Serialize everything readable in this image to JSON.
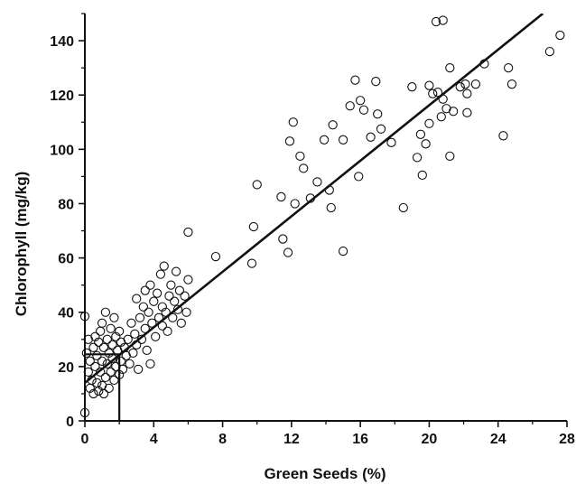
{
  "chart_data": {
    "type": "scatter",
    "title": "",
    "xlabel": "Green Seeds (%)",
    "ylabel": "Chlorophyll (mg/kg)",
    "xlim": [
      0,
      28
    ],
    "ylim": [
      0,
      150
    ],
    "xticks": [
      0,
      4,
      8,
      12,
      16,
      20,
      24,
      28
    ],
    "yticks": [
      0,
      20,
      40,
      60,
      80,
      100,
      120,
      140
    ],
    "grid": false,
    "legend": "none",
    "marker": "open-circle",
    "color": "#111111",
    "series": [
      {
        "points": [
          [
            0.0,
            3
          ],
          [
            0.0,
            38.5
          ],
          [
            0.1,
            25
          ],
          [
            0.2,
            18
          ],
          [
            0.2,
            30
          ],
          [
            0.3,
            12
          ],
          [
            0.3,
            22
          ],
          [
            0.4,
            15
          ],
          [
            0.5,
            10
          ],
          [
            0.5,
            27
          ],
          [
            0.6,
            20
          ],
          [
            0.6,
            31
          ],
          [
            0.7,
            14
          ],
          [
            0.7,
            24
          ],
          [
            0.8,
            11
          ],
          [
            0.8,
            29
          ],
          [
            0.9,
            18
          ],
          [
            0.9,
            33
          ],
          [
            1.0,
            13
          ],
          [
            1.0,
            22
          ],
          [
            1.0,
            36
          ],
          [
            1.1,
            10
          ],
          [
            1.1,
            27
          ],
          [
            1.2,
            16
          ],
          [
            1.2,
            40
          ],
          [
            1.3,
            21
          ],
          [
            1.3,
            30
          ],
          [
            1.4,
            12
          ],
          [
            1.4,
            25
          ],
          [
            1.5,
            18
          ],
          [
            1.5,
            34
          ],
          [
            1.6,
            23
          ],
          [
            1.6,
            28
          ],
          [
            1.7,
            15
          ],
          [
            1.7,
            38
          ],
          [
            1.8,
            20
          ],
          [
            1.8,
            31
          ],
          [
            1.9,
            26
          ],
          [
            2.0,
            17
          ],
          [
            2.0,
            33
          ],
          [
            2.1,
            22
          ],
          [
            2.1,
            29
          ],
          [
            2.2,
            19
          ],
          [
            2.3,
            27
          ],
          [
            2.4,
            24
          ],
          [
            2.5,
            30
          ],
          [
            2.6,
            21
          ],
          [
            2.7,
            36
          ],
          [
            2.8,
            25
          ],
          [
            2.9,
            32
          ],
          [
            3.0,
            28
          ],
          [
            3.0,
            45
          ],
          [
            3.1,
            19
          ],
          [
            3.2,
            38
          ],
          [
            3.3,
            30
          ],
          [
            3.4,
            42
          ],
          [
            3.5,
            34
          ],
          [
            3.5,
            48
          ],
          [
            3.6,
            26
          ],
          [
            3.7,
            40
          ],
          [
            3.8,
            21
          ],
          [
            3.8,
            50
          ],
          [
            3.9,
            36
          ],
          [
            4.0,
            44
          ],
          [
            4.1,
            31
          ],
          [
            4.2,
            47
          ],
          [
            4.3,
            38
          ],
          [
            4.4,
            54
          ],
          [
            4.5,
            35
          ],
          [
            4.5,
            42
          ],
          [
            4.6,
            57
          ],
          [
            4.7,
            40
          ],
          [
            4.8,
            33
          ],
          [
            4.9,
            46
          ],
          [
            5.0,
            50
          ],
          [
            5.1,
            38
          ],
          [
            5.2,
            44
          ],
          [
            5.3,
            55
          ],
          [
            5.4,
            41
          ],
          [
            5.5,
            48
          ],
          [
            5.6,
            36
          ],
          [
            5.8,
            46
          ],
          [
            5.9,
            40
          ],
          [
            6.0,
            52
          ],
          [
            6.0,
            69.5
          ],
          [
            7.6,
            60.5
          ],
          [
            9.7,
            58
          ],
          [
            9.8,
            71.5
          ],
          [
            10.0,
            87
          ],
          [
            11.4,
            82.5
          ],
          [
            11.5,
            67
          ],
          [
            11.8,
            62
          ],
          [
            11.9,
            103
          ],
          [
            12.1,
            110
          ],
          [
            12.2,
            80
          ],
          [
            12.5,
            97.5
          ],
          [
            12.7,
            93
          ],
          [
            13.1,
            82
          ],
          [
            13.5,
            88
          ],
          [
            13.9,
            103.5
          ],
          [
            14.2,
            85
          ],
          [
            14.3,
            78.5
          ],
          [
            14.4,
            109
          ],
          [
            15.0,
            62.5
          ],
          [
            15.0,
            103.5
          ],
          [
            15.4,
            116
          ],
          [
            15.7,
            125.5
          ],
          [
            15.9,
            90
          ],
          [
            16.0,
            118
          ],
          [
            16.2,
            114.5
          ],
          [
            16.6,
            104.5
          ],
          [
            16.9,
            125
          ],
          [
            17.0,
            113
          ],
          [
            17.2,
            107.5
          ],
          [
            17.8,
            102.5
          ],
          [
            18.5,
            78.5
          ],
          [
            19.0,
            123
          ],
          [
            19.3,
            97
          ],
          [
            19.5,
            105.5
          ],
          [
            19.6,
            90.5
          ],
          [
            19.8,
            102
          ],
          [
            20.0,
            123.5
          ],
          [
            20.0,
            109.5
          ],
          [
            20.2,
            120.5
          ],
          [
            20.4,
            147
          ],
          [
            20.5,
            121
          ],
          [
            20.7,
            112
          ],
          [
            20.8,
            118.5
          ],
          [
            20.8,
            147.5
          ],
          [
            21.0,
            115
          ],
          [
            21.2,
            130
          ],
          [
            21.2,
            97.5
          ],
          [
            21.4,
            114
          ],
          [
            21.8,
            123
          ],
          [
            22.1,
            124
          ],
          [
            22.2,
            120.5
          ],
          [
            22.2,
            113.5
          ],
          [
            22.7,
            124
          ],
          [
            23.2,
            131.5
          ],
          [
            24.3,
            105
          ],
          [
            24.6,
            130
          ],
          [
            24.8,
            124
          ],
          [
            27.0,
            136
          ],
          [
            27.6,
            142
          ]
        ]
      }
    ],
    "regression_line": {
      "x": [
        0,
        26.6
      ],
      "y": [
        14,
        150
      ]
    },
    "reference_lines": [
      {
        "x": [
          0,
          2
        ],
        "y": [
          24.5,
          24.5
        ]
      },
      {
        "x": [
          2,
          2
        ],
        "y": [
          0,
          24.5
        ]
      }
    ]
  }
}
